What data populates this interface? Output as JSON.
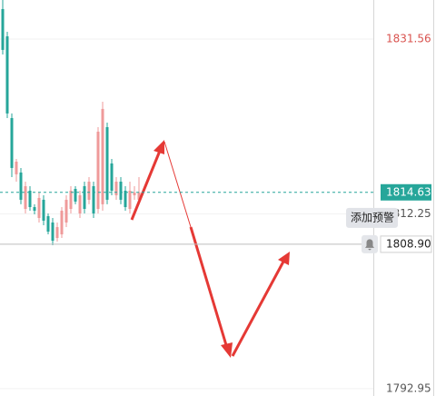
{
  "chart_data": {
    "type": "candlestick",
    "categories": [
      null,
      null,
      null,
      null,
      null,
      null,
      null,
      null,
      null,
      null,
      null,
      null,
      null,
      null,
      null,
      null,
      null,
      null,
      null,
      null,
      null,
      null,
      null,
      null,
      null,
      null,
      null,
      null,
      null,
      null,
      null
    ],
    "open": [
      1834.87,
      1831.86,
      1822.83,
      1816.62,
      1816.82,
      1812.8,
      1814.81,
      1813.0,
      1811.8,
      1813.81,
      1812.0,
      1811.3,
      1809.59,
      1809.99,
      1811.3,
      1812.8,
      1815.01,
      1812.3,
      1815.31,
      1813.81,
      1815.31,
      1812.8,
      1813.31,
      1821.83,
      1817.82,
      1814.31,
      1815.81,
      1814.81,
      1812.8,
      1814.31,
      1813.81
    ],
    "high": [
      1835.87,
      1832.36,
      1823.34,
      1818.32,
      1817.32,
      1815.81,
      1815.31,
      1813.31,
      1814.61,
      1814.31,
      1812.3,
      1811.8,
      1811.3,
      1813.0,
      1814.31,
      1815.31,
      1815.31,
      1814.81,
      1815.81,
      1816.31,
      1815.81,
      1821.83,
      1824.64,
      1822.33,
      1818.32,
      1816.31,
      1816.31,
      1815.31,
      1815.81,
      1815.31,
      1816.31
    ],
    "low": [
      1829.85,
      1822.83,
      1816.31,
      1815.81,
      1813.31,
      1812.3,
      1812.6,
      1812.2,
      1811.3,
      1810.99,
      1809.99,
      1808.79,
      1809.19,
      1809.59,
      1810.79,
      1812.3,
      1813.31,
      1811.8,
      1812.3,
      1813.31,
      1811.8,
      1812.3,
      1812.6,
      1813.31,
      1814.31,
      1813.81,
      1813.31,
      1812.6,
      1812.3,
      1813.81,
      1813.31
    ],
    "close": [
      1830.36,
      1823.34,
      1817.32,
      1818.02,
      1813.81,
      1815.31,
      1813.0,
      1812.6,
      1814.01,
      1811.5,
      1810.29,
      1809.29,
      1810.79,
      1812.6,
      1813.81,
      1814.81,
      1813.61,
      1814.31,
      1812.8,
      1815.81,
      1812.3,
      1821.33,
      1823.84,
      1813.81,
      1814.81,
      1815.81,
      1813.81,
      1813.0,
      1814.81,
      1814.61,
      1814.63
    ],
    "up_color": "#ef9a9a",
    "down_color": "#26a69a",
    "ylim": [
      1792.14,
      1835.87
    ],
    "yticks": [
      1831.56,
      1812.25,
      1792.95
    ],
    "current_price": 1814.63,
    "current_price_color": "#26a69a",
    "crosshair_price": {
      "value": 1808.9,
      "label": "1808.90"
    },
    "alert_tooltip": "添加预警",
    "grid": true
  }
}
